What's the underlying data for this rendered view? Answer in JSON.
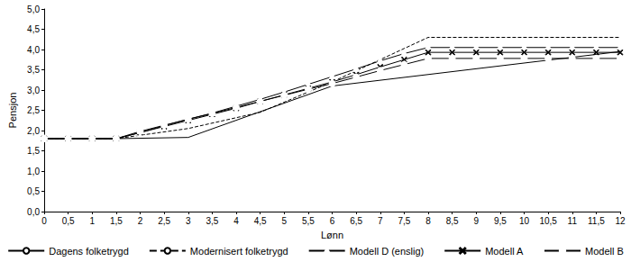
{
  "chart_data": {
    "type": "line",
    "x_label": "Lønn",
    "y_label": "Pensjon",
    "xlim": [
      0,
      12
    ],
    "ylim": [
      0,
      5
    ],
    "xticks": [
      {
        "value": 0,
        "label": "0"
      },
      {
        "value": 0.5,
        "label": "0,5"
      },
      {
        "value": 1,
        "label": "1"
      },
      {
        "value": 1.5,
        "label": "1,5"
      },
      {
        "value": 2,
        "label": "2"
      },
      {
        "value": 2.5,
        "label": "2,5"
      },
      {
        "value": 3,
        "label": "3"
      },
      {
        "value": 3.5,
        "label": "3,5"
      },
      {
        "value": 4,
        "label": "4"
      },
      {
        "value": 4.5,
        "label": "4,5"
      },
      {
        "value": 5,
        "label": "5"
      },
      {
        "value": 5.5,
        "label": "5,5"
      },
      {
        "value": 6,
        "label": "6"
      },
      {
        "value": 6.5,
        "label": "6,5"
      },
      {
        "value": 7,
        "label": "7"
      },
      {
        "value": 7.5,
        "label": "7,5"
      },
      {
        "value": 8,
        "label": "8"
      },
      {
        "value": 8.5,
        "label": "8,5"
      },
      {
        "value": 9,
        "label": "9"
      },
      {
        "value": 9.5,
        "label": "9,5"
      },
      {
        "value": 10,
        "label": "10"
      },
      {
        "value": 10.5,
        "label": "10,5"
      },
      {
        "value": 11,
        "label": "11"
      },
      {
        "value": 11.5,
        "label": "11,5"
      },
      {
        "value": 12,
        "label": "12"
      }
    ],
    "yticks": [
      {
        "value": 0,
        "label": "0,0"
      },
      {
        "value": 0.5,
        "label": "0,5"
      },
      {
        "value": 1,
        "label": "1,0"
      },
      {
        "value": 1.5,
        "label": "1,5"
      },
      {
        "value": 2,
        "label": "2,0"
      },
      {
        "value": 2.5,
        "label": "2,5"
      },
      {
        "value": 3,
        "label": "3,0"
      },
      {
        "value": 3.5,
        "label": "3,5"
      },
      {
        "value": 4,
        "label": "4,0"
      },
      {
        "value": 4.5,
        "label": "4,5"
      },
      {
        "value": 5,
        "label": "5,0"
      }
    ],
    "grid": false,
    "legend": "bottom",
    "series": [
      {
        "name": "Dagens folketrygd",
        "color": "#000000",
        "line_style": "solid",
        "marker": "none",
        "x": [
          0,
          1.5,
          3,
          6,
          12
        ],
        "values": [
          1.8,
          1.8,
          1.83,
          3.1,
          3.95
        ]
      },
      {
        "name": "Modernisert folketrygd",
        "color": "#000000",
        "line_style": "dashed",
        "marker": "none",
        "x": [
          0,
          1.5,
          3,
          4.5,
          6,
          8,
          12
        ],
        "values": [
          1.8,
          1.8,
          2.05,
          2.45,
          3.2,
          4.3,
          4.3
        ]
      },
      {
        "name": "Modell D (enslig)",
        "color": "#000000",
        "line_style": "solid",
        "marker": "triangle",
        "x": [
          0,
          0.5,
          1,
          1.5,
          2,
          2.5,
          3,
          3.5,
          4,
          4.5,
          5,
          5.5,
          6,
          6.5,
          7,
          7.5,
          8,
          8.5,
          9,
          9.5,
          10,
          10.5,
          11,
          11.5,
          12
        ],
        "values": [
          1.8,
          1.8,
          1.8,
          1.8,
          1.95,
          2.12,
          2.28,
          2.43,
          2.6,
          2.77,
          2.95,
          3.14,
          3.33,
          3.52,
          3.72,
          3.9,
          4.05,
          4.05,
          4.05,
          4.05,
          4.05,
          4.05,
          4.05,
          4.05,
          4.05
        ]
      },
      {
        "name": "Modell A",
        "color": "#000000",
        "line_style": "solid",
        "marker": "x",
        "x": [
          0,
          0.5,
          1,
          1.5,
          2,
          2.5,
          3,
          3.5,
          4,
          4.5,
          5,
          5.5,
          6,
          6.5,
          7,
          7.5,
          8,
          8.5,
          9,
          9.5,
          10,
          10.5,
          11,
          11.5,
          12
        ],
        "values": [
          1.8,
          1.8,
          1.8,
          1.8,
          1.95,
          2.1,
          2.25,
          2.4,
          2.55,
          2.72,
          2.88,
          3.04,
          3.2,
          3.38,
          3.57,
          3.75,
          3.93,
          3.93,
          3.93,
          3.93,
          3.93,
          3.93,
          3.93,
          3.93,
          3.93
        ]
      },
      {
        "name": "Modell B",
        "color": "#000000",
        "line_style": "solid",
        "marker": "circle",
        "x": [
          0,
          0.5,
          1,
          1.5,
          2,
          2.5,
          3,
          3.5,
          4,
          4.5,
          5,
          5.5,
          6,
          6.5,
          7,
          7.5,
          8,
          8.5,
          9,
          9.5,
          10,
          10.5,
          11,
          11.5,
          12
        ],
        "values": [
          1.8,
          1.8,
          1.8,
          1.8,
          1.98,
          2.13,
          2.28,
          2.42,
          2.57,
          2.72,
          2.87,
          3.02,
          3.16,
          3.32,
          3.48,
          3.63,
          3.78,
          3.78,
          3.78,
          3.78,
          3.78,
          3.78,
          3.78,
          3.78,
          3.78
        ]
      }
    ]
  }
}
